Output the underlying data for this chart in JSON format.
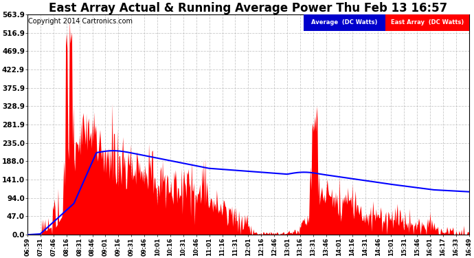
{
  "title": "East Array Actual & Running Average Power Thu Feb 13 16:57",
  "copyright": "Copyright 2014 Cartronics.com",
  "legend_avg": "Average  (DC Watts)",
  "legend_east": "East Array  (DC Watts)",
  "yticks": [
    0.0,
    47.0,
    94.0,
    141.0,
    188.0,
    235.0,
    281.9,
    328.9,
    375.9,
    422.9,
    469.9,
    516.9,
    563.9
  ],
  "ymax": 563.9,
  "xtick_labels": [
    "06:59",
    "07:31",
    "07:46",
    "08:16",
    "08:31",
    "08:46",
    "09:01",
    "09:16",
    "09:31",
    "09:46",
    "10:01",
    "10:16",
    "10:31",
    "10:46",
    "11:01",
    "11:16",
    "11:31",
    "12:01",
    "12:16",
    "12:46",
    "13:01",
    "13:16",
    "13:31",
    "13:46",
    "14:01",
    "14:16",
    "14:31",
    "14:46",
    "15:01",
    "15:31",
    "15:46",
    "16:01",
    "16:17",
    "16:33",
    "16:49"
  ],
  "bg_color": "#ffffff",
  "fill_color": "#ff0000",
  "line_color": "#0000ff",
  "grid_color": "#bbbbbb",
  "title_color": "#000000",
  "title_fontsize": 12,
  "copyright_fontsize": 7,
  "figwidth": 6.9,
  "figheight": 3.75,
  "dpi": 100
}
